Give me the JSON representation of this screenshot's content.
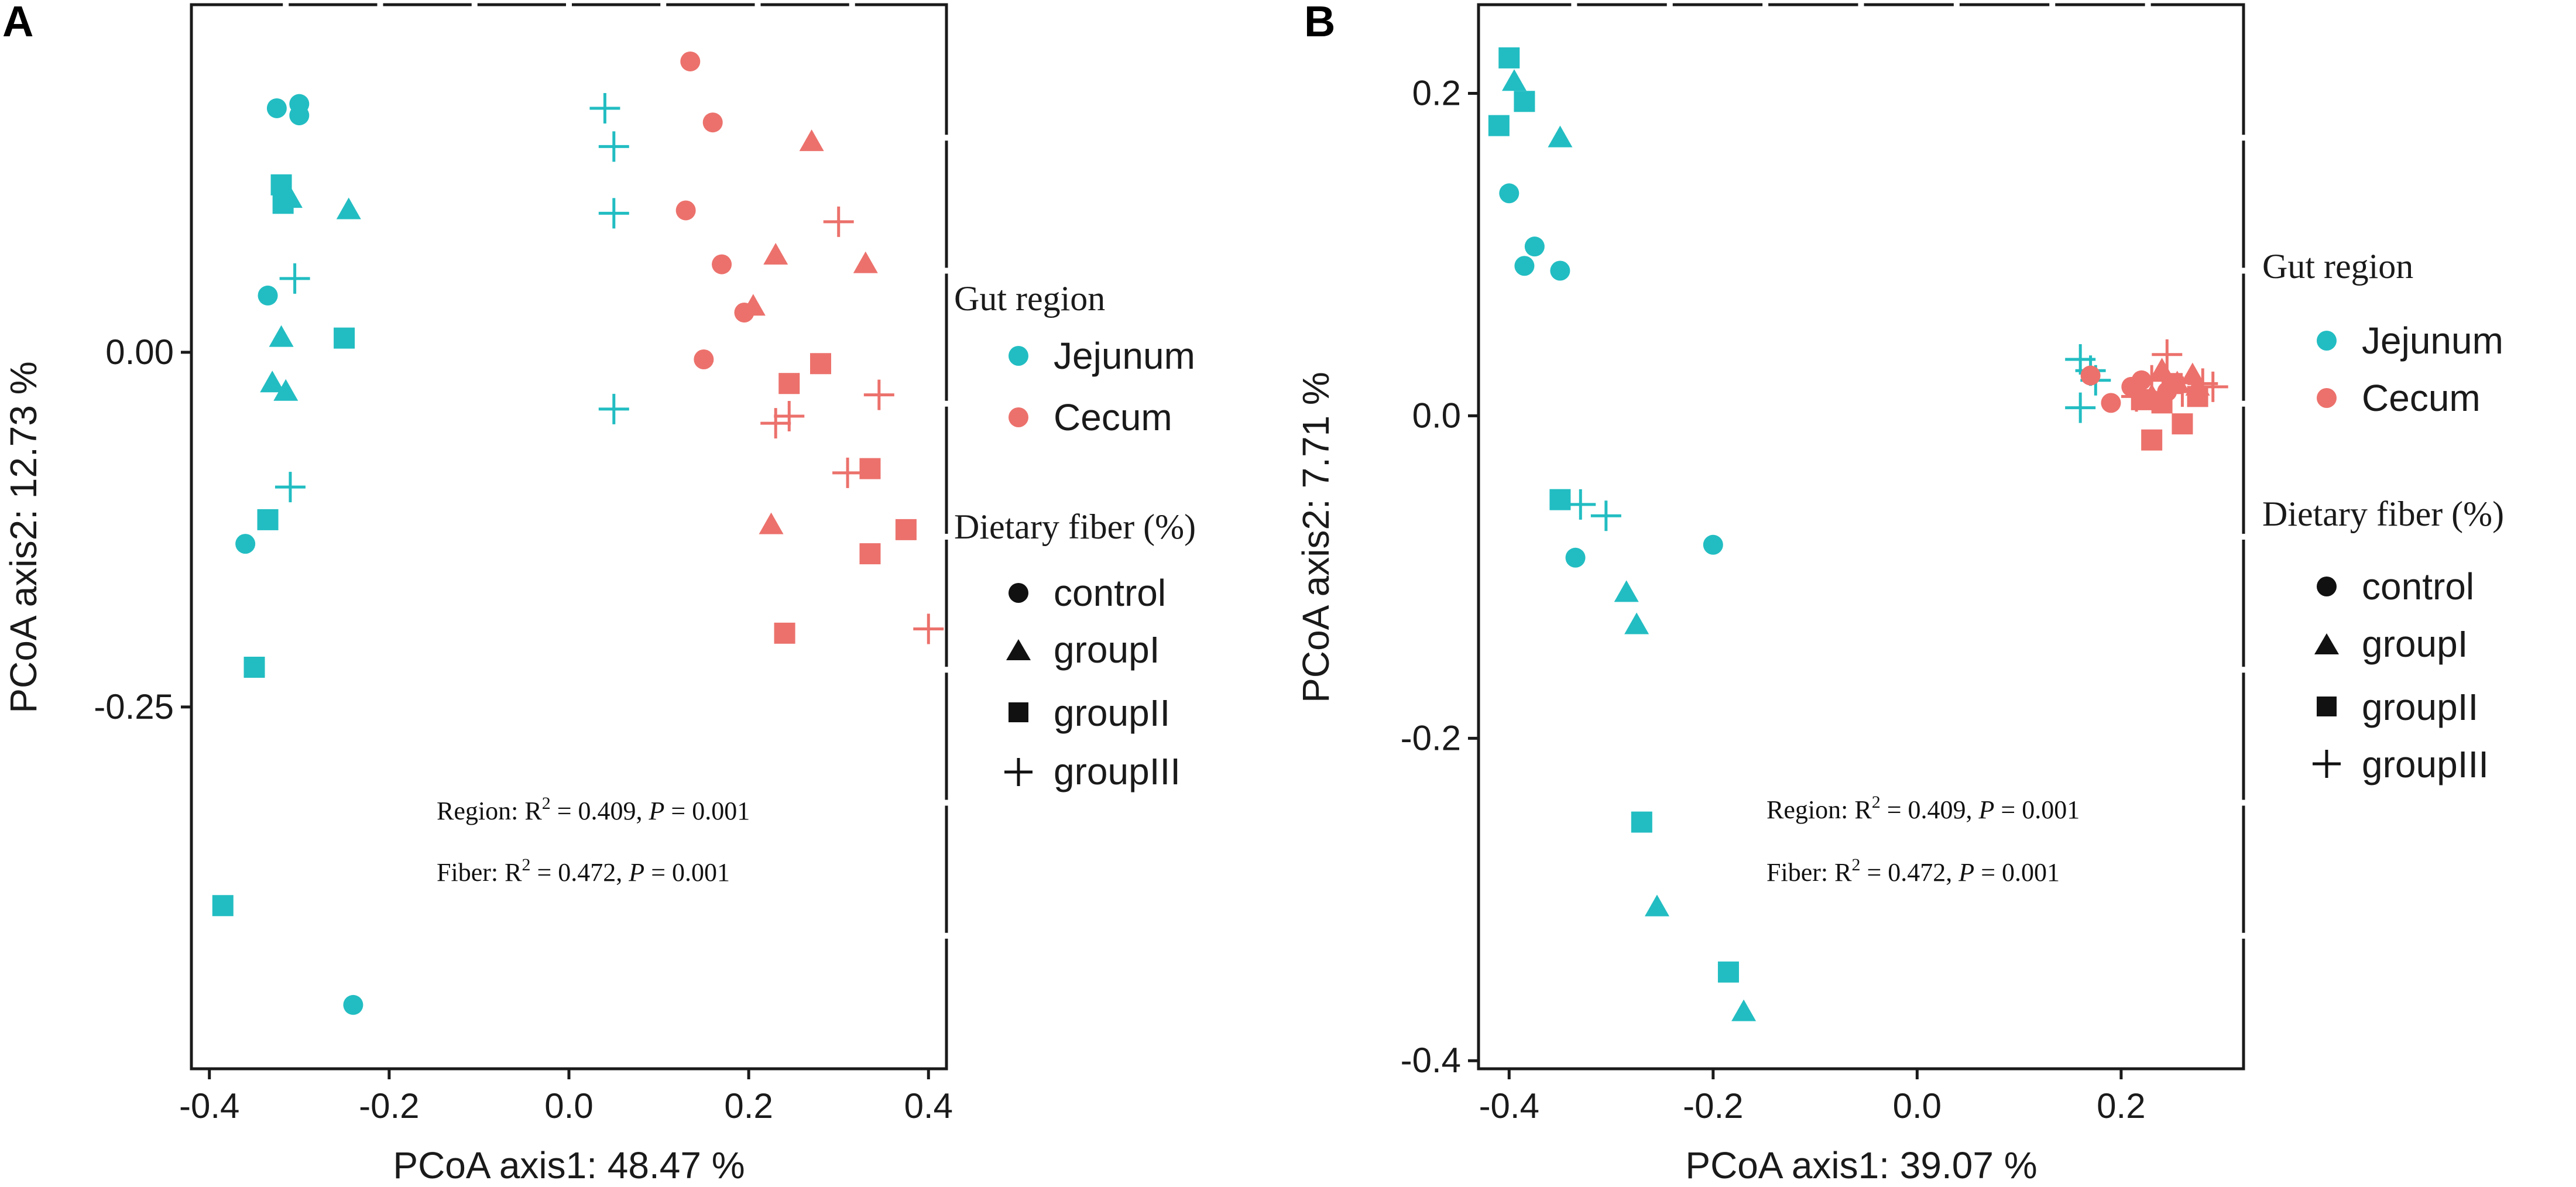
{
  "colors": {
    "jejunum": "#22BDC2",
    "cecum": "#EC716C",
    "axis": "#1a1a1a"
  },
  "legend": {
    "region_title": "Gut region",
    "region_items": [
      {
        "label": "Jejunum",
        "color_key": "jejunum"
      },
      {
        "label": "Cecum",
        "color_key": "cecum"
      }
    ],
    "fiber_title": "Dietary fiber (%)",
    "fiber_items": [
      {
        "label": "control",
        "shape": "circle"
      },
      {
        "label": "groupI",
        "shape": "triangle"
      },
      {
        "label": "groupII",
        "shape": "square"
      },
      {
        "label": "groupIII",
        "shape": "plus"
      }
    ]
  },
  "stats": {
    "region": {
      "name": "Region:",
      "r2": "0.409",
      "p": "0.001"
    },
    "fiber": {
      "name": "Fiber:",
      "r2": "0.472",
      "p": "0.001"
    }
  },
  "chart_data": [
    {
      "panel_label": "A",
      "type": "scatter",
      "xlabel": "PCoA axis1:  48.47 %",
      "ylabel": "PCoA axis2:  12.73 %",
      "xlim": [
        -0.42,
        0.42
      ],
      "ylim": [
        -0.505,
        0.245
      ],
      "xticks": [
        -0.4,
        -0.2,
        0.0,
        0.2,
        0.4
      ],
      "xticklabels": [
        "-0.4",
        "-0.2",
        "0.0",
        "0.2",
        "0.4"
      ],
      "yticks": [
        0.0,
        -0.25
      ],
      "yticklabels": [
        "0.00",
        "-0.25"
      ],
      "series": [
        {
          "name": "Jejunum control",
          "region": "jejunum",
          "fiber": "control",
          "points": [
            [
              -0.325,
              0.172
            ],
            [
              -0.3,
              0.175
            ],
            [
              -0.3,
              0.167
            ],
            [
              -0.335,
              0.04
            ],
            [
              -0.36,
              -0.135
            ],
            [
              -0.24,
              -0.46
            ]
          ]
        },
        {
          "name": "Jejunum groupI",
          "region": "jejunum",
          "fiber": "groupI",
          "points": [
            [
              -0.31,
              0.108
            ],
            [
              -0.315,
              0.112
            ],
            [
              -0.245,
              0.1
            ],
            [
              -0.32,
              0.01
            ],
            [
              -0.33,
              -0.022
            ],
            [
              -0.315,
              -0.028
            ]
          ]
        },
        {
          "name": "Jejunum groupII",
          "region": "jejunum",
          "fiber": "groupII",
          "points": [
            [
              -0.32,
              0.118
            ],
            [
              -0.318,
              0.105
            ],
            [
              -0.25,
              0.01
            ],
            [
              -0.335,
              -0.118
            ],
            [
              -0.35,
              -0.222
            ],
            [
              -0.385,
              -0.39
            ]
          ]
        },
        {
          "name": "Jejunum groupIII",
          "region": "jejunum",
          "fiber": "groupIII",
          "points": [
            [
              -0.305,
              0.052
            ],
            [
              -0.31,
              -0.095
            ],
            [
              0.04,
              0.172
            ],
            [
              0.05,
              0.145
            ],
            [
              0.05,
              0.098
            ],
            [
              0.05,
              -0.04
            ]
          ]
        },
        {
          "name": "Cecum control",
          "region": "cecum",
          "fiber": "control",
          "points": [
            [
              0.135,
              0.205
            ],
            [
              0.16,
              0.162
            ],
            [
              0.13,
              0.1
            ],
            [
              0.17,
              0.062
            ],
            [
              0.195,
              0.028
            ],
            [
              0.15,
              -0.005
            ]
          ]
        },
        {
          "name": "Cecum groupI",
          "region": "cecum",
          "fiber": "groupI",
          "points": [
            [
              0.27,
              0.148
            ],
            [
              0.23,
              0.068
            ],
            [
              0.33,
              0.062
            ],
            [
              0.205,
              0.032
            ],
            [
              0.225,
              -0.122
            ]
          ]
        },
        {
          "name": "Cecum groupII",
          "region": "cecum",
          "fiber": "groupII",
          "points": [
            [
              0.28,
              -0.008
            ],
            [
              0.245,
              -0.022
            ],
            [
              0.335,
              -0.082
            ],
            [
              0.375,
              -0.125
            ],
            [
              0.335,
              -0.142
            ],
            [
              0.24,
              -0.198
            ]
          ]
        },
        {
          "name": "Cecum groupIII",
          "region": "cecum",
          "fiber": "groupIII",
          "points": [
            [
              0.3,
              0.092
            ],
            [
              0.345,
              -0.03
            ],
            [
              0.245,
              -0.045
            ],
            [
              0.23,
              -0.05
            ],
            [
              0.31,
              -0.085
            ],
            [
              0.4,
              -0.195
            ]
          ]
        }
      ]
    },
    {
      "panel_label": "B",
      "type": "scatter",
      "xlabel": "PCoA axis1:  39.07 %",
      "ylabel": "PCoA axis2:  7.71 %",
      "xlim": [
        -0.43,
        0.32
      ],
      "ylim": [
        -0.405,
        0.255
      ],
      "xticks": [
        -0.4,
        -0.2,
        0.0,
        0.2
      ],
      "xticklabels": [
        "-0.4",
        "-0.2",
        "0.0",
        "0.2"
      ],
      "yticks": [
        0.2,
        0.0,
        -0.2,
        -0.4
      ],
      "yticklabels": [
        "0.2",
        "0.0",
        "-0.2",
        "-0.4"
      ],
      "series": [
        {
          "name": "Jejunum control",
          "region": "jejunum",
          "fiber": "control",
          "points": [
            [
              -0.4,
              0.138
            ],
            [
              -0.375,
              0.105
            ],
            [
              -0.385,
              0.093
            ],
            [
              -0.35,
              0.09
            ],
            [
              -0.335,
              -0.088
            ],
            [
              -0.2,
              -0.08
            ]
          ]
        },
        {
          "name": "Jejunum groupI",
          "region": "jejunum",
          "fiber": "groupI",
          "points": [
            [
              -0.395,
              0.207
            ],
            [
              -0.35,
              0.172
            ],
            [
              -0.285,
              -0.11
            ],
            [
              -0.275,
              -0.13
            ],
            [
              -0.255,
              -0.305
            ],
            [
              -0.17,
              -0.37
            ]
          ]
        },
        {
          "name": "Jejunum groupII",
          "region": "jejunum",
          "fiber": "groupII",
          "points": [
            [
              -0.4,
              0.222
            ],
            [
              -0.385,
              0.195
            ],
            [
              -0.41,
              0.18
            ],
            [
              -0.35,
              -0.052
            ],
            [
              -0.27,
              -0.252
            ],
            [
              -0.185,
              -0.345
            ]
          ]
        },
        {
          "name": "Jejunum groupIII",
          "region": "jejunum",
          "fiber": "groupIII",
          "points": [
            [
              -0.33,
              -0.055
            ],
            [
              -0.305,
              -0.062
            ],
            [
              0.16,
              0.035
            ],
            [
              0.175,
              0.022
            ],
            [
              0.16,
              0.005
            ],
            [
              0.17,
              0.028
            ]
          ]
        },
        {
          "name": "Cecum control",
          "region": "cecum",
          "fiber": "control",
          "points": [
            [
              0.17,
              0.025
            ],
            [
              0.21,
              0.018
            ],
            [
              0.22,
              0.022
            ],
            [
              0.245,
              0.015
            ],
            [
              0.19,
              0.008
            ],
            [
              0.23,
              0.01
            ]
          ]
        },
        {
          "name": "Cecum groupI",
          "region": "cecum",
          "fiber": "groupI",
          "points": [
            [
              0.24,
              0.028
            ],
            [
              0.255,
              0.02
            ],
            [
              0.275,
              0.018
            ],
            [
              0.23,
              0.012
            ],
            [
              0.27,
              0.025
            ]
          ]
        },
        {
          "name": "Cecum groupII",
          "region": "cecum",
          "fiber": "groupII",
          "points": [
            [
              0.23,
              -0.015
            ],
            [
              0.26,
              -0.005
            ],
            [
              0.275,
              0.012
            ],
            [
              0.24,
              0.008
            ],
            [
              0.22,
              0.01
            ],
            [
              0.25,
              0.02
            ]
          ]
        },
        {
          "name": "Cecum groupIII",
          "region": "cecum",
          "fiber": "groupIII",
          "points": [
            [
              0.245,
              0.038
            ],
            [
              0.28,
              0.02
            ],
            [
              0.23,
              0.022
            ],
            [
              0.26,
              0.015
            ],
            [
              0.29,
              0.018
            ],
            [
              0.215,
              0.012
            ]
          ]
        }
      ]
    }
  ]
}
